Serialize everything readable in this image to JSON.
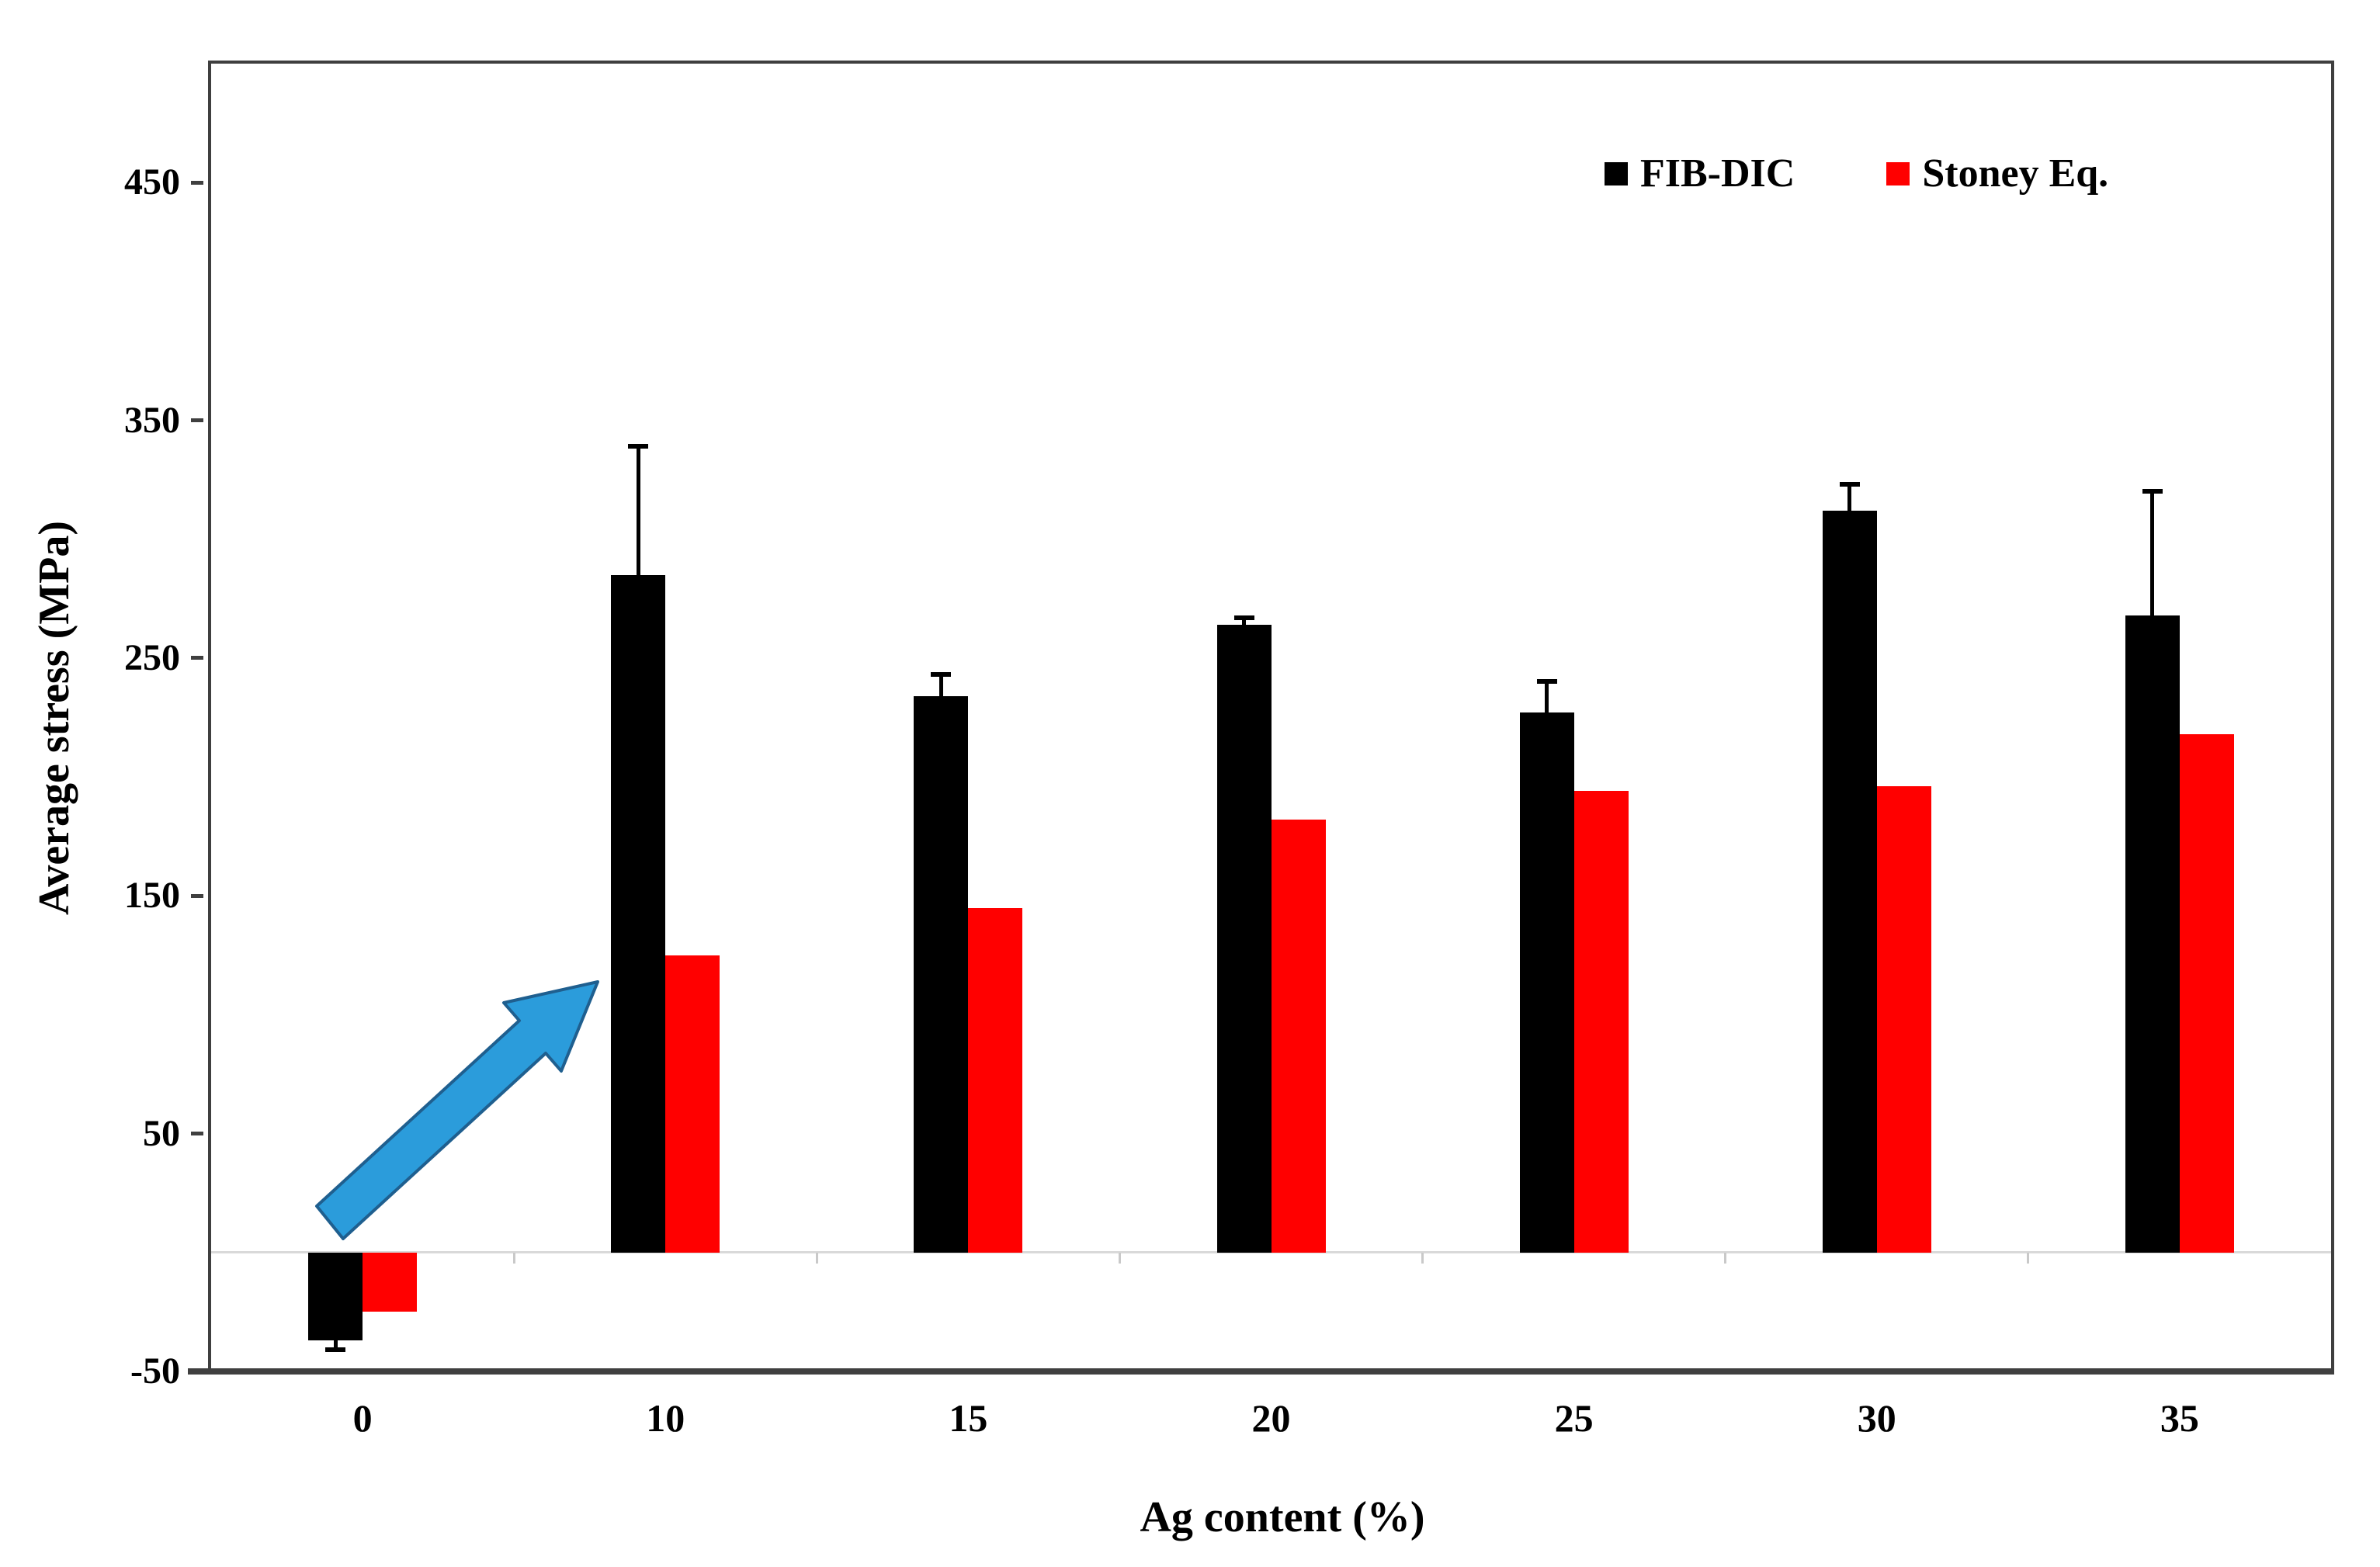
{
  "figure": {
    "background": "#ffffff"
  },
  "axes": {
    "y_title": "Average stress (MPa)",
    "x_title": "Ag content (%)",
    "y_tick_labels": [
      "-50",
      "50",
      "150",
      "250",
      "350",
      "450"
    ],
    "x_tick_labels": [
      "0",
      "10",
      "15",
      "20",
      "25",
      "30",
      "35"
    ]
  },
  "legend": {
    "items": [
      {
        "label": "FIB-DIC",
        "color": "#000000"
      },
      {
        "label": "Stoney Eq.",
        "color": "#ff0000"
      }
    ]
  },
  "chart_data": {
    "type": "bar",
    "title": "",
    "xlabel": "Ag content (%)",
    "ylabel": "Average stress (MPa)",
    "categories": [
      "0",
      "10",
      "15",
      "20",
      "25",
      "30",
      "35"
    ],
    "series": [
      {
        "name": "FIB-DIC",
        "color": "#000000",
        "values": [
          -37,
          285,
          234,
          264,
          227,
          312,
          268
        ],
        "errors": [
          5,
          55,
          10,
          4,
          14,
          12,
          53
        ],
        "errors_note": "error bars drawn away from zero, FIB-DIC series only"
      },
      {
        "name": "Stoney Eq.",
        "color": "#ff0000",
        "values": [
          -25,
          125,
          145,
          182,
          194,
          196,
          218
        ]
      }
    ],
    "ylim": [
      -50,
      500
    ],
    "yticks": [
      -50,
      50,
      150,
      250,
      350,
      450
    ],
    "grid": false,
    "legend_position": "top-right-inside",
    "annotations": [
      {
        "type": "arrow",
        "fill": "#2b9cdb",
        "stroke": "#1f5f8f",
        "direction": "up-right",
        "meaning": "points from 0% group toward the 10% FIB-DIC bar (stress jump)"
      }
    ]
  },
  "colors": {
    "axis": "#3f3f3f",
    "zero_line": "#d9d9d9",
    "series_fib_dic": "#000000",
    "series_stoney": "#ff0000",
    "arrow_fill": "#2b9cdb",
    "arrow_stroke": "#1f5f8f"
  }
}
